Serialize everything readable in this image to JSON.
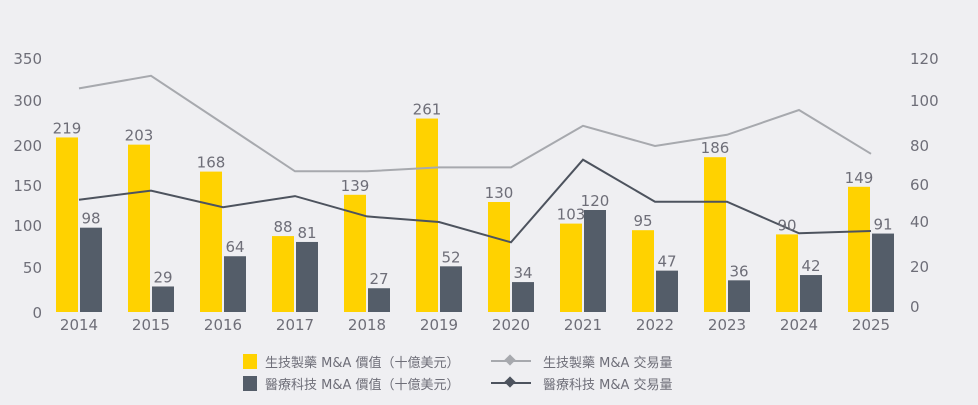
{
  "chart_data": {
    "type": "bar+line",
    "categories": [
      "2014",
      "2015",
      "2016",
      "2017",
      "2018",
      "2019",
      "2020",
      "2021",
      "2022",
      "2023",
      "2024",
      "2025"
    ],
    "series": [
      {
        "name": "生技製藥 M&A 價值（十億美元）",
        "kind": "bar",
        "axis": "left",
        "color": "#ffd200",
        "values": [
          219,
          203,
          168,
          88,
          139,
          261,
          130,
          103,
          95,
          186,
          90,
          149
        ]
      },
      {
        "name": "醫療科技 M&A 價值（十億美元）",
        "kind": "bar",
        "axis": "left",
        "color": "#545d69",
        "values": [
          98,
          29,
          64,
          81,
          27,
          52,
          34,
          120,
          47,
          36,
          42,
          91
        ]
      },
      {
        "name": "生技製藥 M&A 交易量",
        "kind": "line",
        "axis": "right",
        "color": "#a7a9ae",
        "values": [
          106,
          112,
          90,
          67,
          67,
          69,
          69,
          89,
          80,
          85,
          96,
          76
        ]
      },
      {
        "name": "醫療科技 M&A 交易量",
        "kind": "line",
        "axis": "right",
        "color": "#4d535e",
        "values": [
          52,
          57,
          48,
          54,
          43,
          40,
          31,
          73,
          51,
          51,
          35,
          36
        ]
      }
    ],
    "left_axis": {
      "ticks": [
        0,
        50,
        100,
        150,
        200,
        300,
        350
      ],
      "ylim": [
        0,
        350
      ]
    },
    "right_axis": {
      "ticks": [
        0,
        20,
        40,
        60,
        80,
        100,
        120
      ],
      "ylim": [
        0,
        120
      ]
    },
    "legend_position": "bottom"
  }
}
